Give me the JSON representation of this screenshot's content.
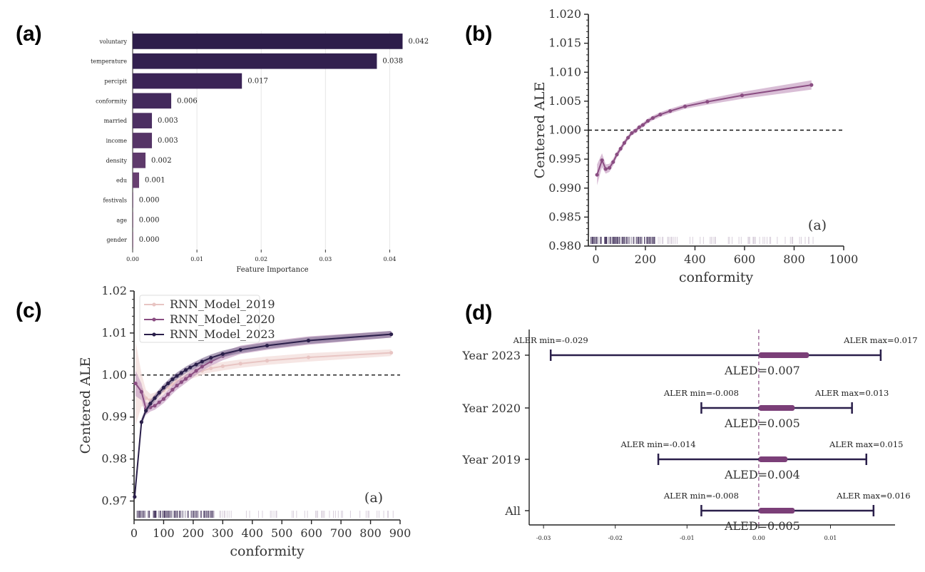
{
  "panels": {
    "a": "(a)",
    "b": "(b)",
    "c": "(c)",
    "d": "(d)"
  },
  "colors": {
    "dark": "#2c1d45",
    "mid": "#4a2a5e",
    "plum": "#8a4d82",
    "plum_fill": "#c9a2c4",
    "pink": "#e8c5c3",
    "pink_fill": "#f2dcd9",
    "navy": "#2a1f4a"
  },
  "chart_data": [
    {
      "id": "a",
      "type": "bar",
      "orientation": "horizontal",
      "categories": [
        "voluntary",
        "temperature",
        "percipit",
        "conformity",
        "married",
        "income",
        "density",
        "edu",
        "festivals",
        "age",
        "gender"
      ],
      "values": [
        0.042,
        0.038,
        0.017,
        0.006,
        0.003,
        0.003,
        0.002,
        0.001,
        0.0,
        0.0,
        0.0
      ],
      "value_labels": [
        "0.042",
        "0.038",
        "0.017",
        "0.006",
        "0.003",
        "0.003",
        "0.002",
        "0.001",
        "0.000",
        "0.000",
        "0.000"
      ],
      "xlabel": "Feature Importance",
      "xlim": [
        0,
        0.0435
      ],
      "xticks": [
        0.0,
        0.01,
        0.02,
        0.03,
        0.04
      ],
      "xtick_labels": [
        "0.00",
        "0.01",
        "0.02",
        "0.03",
        "0.04"
      ],
      "grid": "x"
    },
    {
      "id": "b",
      "type": "line",
      "xlabel": "conformity",
      "ylabel": "Centered ALE",
      "xlim": [
        -30,
        1000
      ],
      "ylim": [
        0.98,
        1.02
      ],
      "xticks": [
        0,
        200,
        400,
        600,
        800,
        1000
      ],
      "yticks": [
        0.98,
        0.985,
        0.99,
        0.995,
        1.0,
        1.005,
        1.01,
        1.015,
        1.02
      ],
      "ytick_labels": [
        "0.980",
        "0.985",
        "0.990",
        "0.995",
        "1.000",
        "1.005",
        "1.010",
        "1.015",
        "1.020"
      ],
      "reference_line": 1.0,
      "annotation": "(a)",
      "series": [
        {
          "x": [
            5,
            25,
            40,
            55,
            70,
            85,
            100,
            115,
            130,
            145,
            160,
            175,
            190,
            210,
            230,
            260,
            300,
            360,
            450,
            590,
            870
          ],
          "y": [
            0.9923,
            0.9948,
            0.9933,
            0.9935,
            0.9945,
            0.9958,
            0.9968,
            0.9978,
            0.9987,
            0.9995,
            0.9999,
            1.0005,
            1.0009,
            1.0016,
            1.0021,
            1.0027,
            1.0033,
            1.0041,
            1.0049,
            1.006,
            1.0078
          ],
          "band": [
            0.0018,
            0.0012,
            0.0008,
            0.0007,
            0.0006,
            0.0005,
            0.0005,
            0.0005,
            0.0004,
            0.0004,
            0.0004,
            0.0004,
            0.0004,
            0.0004,
            0.0004,
            0.0004,
            0.0004,
            0.0004,
            0.0005,
            0.0006,
            0.0008
          ]
        }
      ]
    },
    {
      "id": "c",
      "type": "line",
      "xlabel": "conformity",
      "ylabel": "Centered ALE",
      "xlim": [
        0,
        900
      ],
      "ylim": [
        0.9655,
        1.02
      ],
      "xticks": [
        0,
        100,
        200,
        300,
        400,
        500,
        600,
        700,
        800,
        900
      ],
      "yticks": [
        0.97,
        0.98,
        0.99,
        1.0,
        1.01,
        1.02
      ],
      "ytick_labels": [
        "0.97",
        "0.98",
        "0.99",
        "1.00",
        "1.01",
        "1.02"
      ],
      "reference_line": 1.0,
      "annotation": "(a)",
      "legend_position": "top-left",
      "series": [
        {
          "name": "RNN_Model_2019",
          "x": [
            5,
            25,
            40,
            55,
            70,
            85,
            100,
            115,
            130,
            145,
            160,
            175,
            190,
            210,
            230,
            260,
            300,
            360,
            450,
            590,
            870
          ],
          "y": [
            0.998,
            0.9965,
            0.9945,
            0.994,
            0.9948,
            0.9955,
            0.9963,
            0.9971,
            0.9978,
            0.9985,
            0.9991,
            0.9996,
            1.0,
            1.0005,
            1.001,
            1.0016,
            1.0021,
            1.0027,
            1.0034,
            1.0042,
            1.0053
          ],
          "band": [
            0.01,
            0.004,
            0.002,
            0.0015,
            0.001,
            0.001,
            0.001,
            0.001,
            0.001,
            0.001,
            0.001,
            0.001,
            0.001,
            0.001,
            0.001,
            0.001,
            0.001,
            0.001,
            0.001,
            0.001,
            0.0008
          ]
        },
        {
          "name": "RNN_Model_2020",
          "x": [
            5,
            25,
            40,
            55,
            70,
            85,
            100,
            115,
            130,
            145,
            160,
            175,
            190,
            210,
            230,
            260,
            300,
            360,
            450,
            590,
            870
          ],
          "y": [
            0.998,
            0.996,
            0.992,
            0.9923,
            0.9927,
            0.9935,
            0.9943,
            0.9954,
            0.9965,
            0.9975,
            0.9983,
            0.9991,
            0.9999,
            1.001,
            1.002,
            1.0032,
            1.0045,
            1.006,
            1.007,
            1.0082,
            1.0097
          ],
          "band": [
            0.003,
            0.002,
            0.0015,
            0.001,
            0.001,
            0.001,
            0.001,
            0.001,
            0.001,
            0.001,
            0.001,
            0.001,
            0.001,
            0.001,
            0.001,
            0.001,
            0.001,
            0.001,
            0.001,
            0.001,
            0.0008
          ]
        },
        {
          "name": "RNN_Model_2023",
          "x": [
            2,
            25,
            40,
            55,
            70,
            85,
            100,
            115,
            130,
            145,
            160,
            175,
            190,
            210,
            230,
            260,
            300,
            360,
            450,
            590,
            870
          ],
          "y": [
            0.971,
            0.9888,
            0.9915,
            0.9932,
            0.9945,
            0.9958,
            0.997,
            0.998,
            0.999,
            0.9998,
            1.0005,
            1.0012,
            1.0018,
            1.0025,
            1.0032,
            1.0041,
            1.005,
            1.006,
            1.007,
            1.0082,
            1.0097
          ],
          "band": [
            0.0008,
            0.0008,
            0.0008,
            0.0008,
            0.0008,
            0.0008,
            0.0008,
            0.0008,
            0.0008,
            0.0008,
            0.0008,
            0.0008,
            0.0008,
            0.0008,
            0.0008,
            0.0008,
            0.0008,
            0.0008,
            0.0008,
            0.0008,
            0.0008
          ]
        }
      ]
    },
    {
      "id": "d",
      "type": "interval",
      "categories": [
        "Year 2023",
        "Year 2020",
        "Year 2019",
        "All"
      ],
      "xlim": [
        -0.032,
        0.019
      ],
      "xticks": [
        -0.03,
        -0.02,
        -0.01,
        0.0,
        0.01
      ],
      "xtick_labels": [
        "-0.03",
        "-0.02",
        "-0.01",
        "0.00",
        "0.01"
      ],
      "reference_line": 0.0,
      "rows": [
        {
          "min": -0.029,
          "max": 0.017,
          "aled": 0.007,
          "min_label": "ALER min=-0.029",
          "max_label": "ALER max=0.017",
          "aled_label": "ALED=0.007"
        },
        {
          "min": -0.008,
          "max": 0.013,
          "aled": 0.005,
          "min_label": "ALER min=-0.008",
          "max_label": "ALER max=0.013",
          "aled_label": "ALED=0.005"
        },
        {
          "min": -0.014,
          "max": 0.015,
          "aled": 0.004,
          "min_label": "ALER min=-0.014",
          "max_label": "ALER max=0.015",
          "aled_label": "ALED=0.004"
        },
        {
          "min": -0.008,
          "max": 0.016,
          "aled": 0.005,
          "min_label": "ALER min=-0.008",
          "max_label": "ALER max=0.016",
          "aled_label": "ALED=0.005"
        }
      ]
    }
  ]
}
